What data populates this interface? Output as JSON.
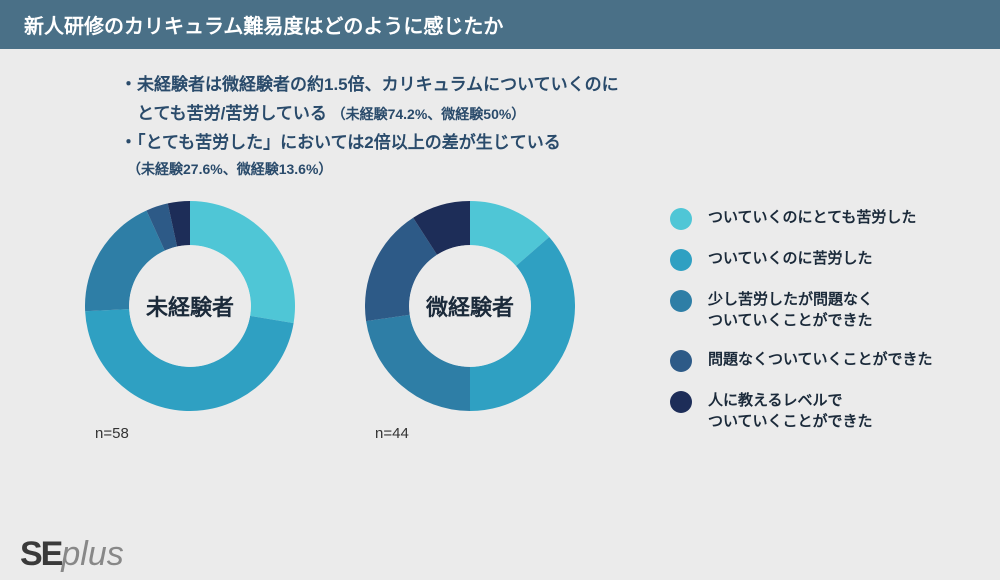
{
  "header": {
    "title": "新人研修のカリキュラム難易度はどのように感じたか"
  },
  "notes": {
    "line1a": "・未経験者は微経験者の約1.5倍、カリキュラムについていくのに",
    "line1b": "　とても苦労/苦労している",
    "line1b_sub": "（未経験74.2%、微経験50%）",
    "line2a": "・「とても苦労した」においては2倍以上の差が生じている",
    "line2_sub": "　（未経験27.6%、微経験13.6%）"
  },
  "palette": {
    "c1": "#4fc6d6",
    "c2": "#2fa0c2",
    "c3": "#2e7ea6",
    "c4": "#2d5a87",
    "c5": "#1d2d58"
  },
  "legend": [
    {
      "color": "#4fc6d6",
      "label": "ついていくのにとても苦労した"
    },
    {
      "color": "#2fa0c2",
      "label": "ついていくのに苦労した"
    },
    {
      "color": "#2e7ea6",
      "label": "少し苦労したが問題なく\nついていくことができた"
    },
    {
      "color": "#2d5a87",
      "label": "問題なくついていくことができた"
    },
    {
      "color": "#1d2d58",
      "label": "人に教えるレベルで\nついていくことができた"
    }
  ],
  "charts": [
    {
      "label": "未経験者",
      "n": "n=58",
      "slices": [
        {
          "value": 27.6,
          "color": "#4fc6d6"
        },
        {
          "value": 46.6,
          "color": "#2fa0c2"
        },
        {
          "value": 19.0,
          "color": "#2e7ea6"
        },
        {
          "value": 3.4,
          "color": "#2d5a87"
        },
        {
          "value": 3.4,
          "color": "#1d2d58"
        }
      ]
    },
    {
      "label": "微経験者",
      "n": "n=44",
      "slices": [
        {
          "value": 13.6,
          "color": "#4fc6d6"
        },
        {
          "value": 36.4,
          "color": "#2fa0c2"
        },
        {
          "value": 22.7,
          "color": "#2e7ea6"
        },
        {
          "value": 18.2,
          "color": "#2d5a87"
        },
        {
          "value": 9.1,
          "color": "#1d2d58"
        }
      ]
    }
  ],
  "donut": {
    "outer_r": 100,
    "inner_r": 58,
    "bg": "#ebebeb"
  },
  "logo": {
    "a": "SE",
    "b": "plus"
  }
}
